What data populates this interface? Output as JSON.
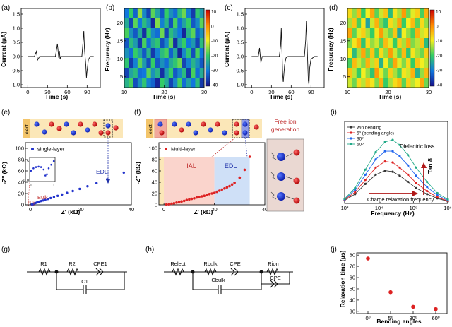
{
  "panels": {
    "a": {
      "label": "(a)",
      "ylabel": "Current (μA)",
      "xlabel": "Time (s)",
      "yticks": [
        "1.5",
        "1.0",
        "0.5",
        "0.0",
        "-0.5",
        "-1.0"
      ],
      "xticks": [
        "0",
        "30",
        "60",
        "90"
      ]
    },
    "b": {
      "label": "(b)",
      "ylabel": "Frequency (Hz)",
      "xlabel": "Time (s)",
      "yticks": [
        "20",
        "15",
        "10",
        "5"
      ],
      "xticks": [
        "10",
        "20",
        "30"
      ],
      "cbar": [
        "10",
        "0",
        "-10",
        "-20",
        "-30",
        "-40"
      ]
    },
    "c": {
      "label": "(c)",
      "ylabel": "Current (μA)",
      "xlabel": "Time (s)",
      "yticks": [
        "1.5",
        "1.0",
        "0.5",
        "0.0",
        "-0.5",
        "-1.0"
      ],
      "xticks": [
        "0",
        "30",
        "60",
        "90"
      ]
    },
    "d": {
      "label": "(d)",
      "ylabel": "Frequency (Hz)",
      "xlabel": "Time (s)",
      "yticks": [
        "20",
        "15",
        "10",
        "5"
      ],
      "xticks": [
        "10",
        "20",
        "30"
      ],
      "cbar": [
        "10",
        "0",
        "-10",
        "-20",
        "-30",
        "-40"
      ]
    },
    "e": {
      "label": "(e)",
      "elect": "elect",
      "legend": "single-layer",
      "edl": "EDL",
      "bulk": "Bulk",
      "ylabel": "-Z'' (kΩ)",
      "xlabel": "Z' (kΩ)",
      "yticks": [
        "100",
        "80",
        "60",
        "40",
        "20",
        "0"
      ],
      "xticks": [
        "0",
        "20",
        "40"
      ],
      "inset_y": [
        "0.5",
        "0.0"
      ],
      "inset_x": [
        "0",
        "1"
      ]
    },
    "f": {
      "label": "(f)",
      "elect": "elect",
      "legend": "Multi-layer",
      "ial": "IAL",
      "edl": "EDL",
      "free_ion_1": "Free ion",
      "free_ion_2": "generation",
      "ylabel": "-Z'' (kΩ)",
      "xlabel": "Z' (kΩ)",
      "yticks": [
        "100",
        "80",
        "60",
        "40",
        "20",
        "0"
      ],
      "xticks": [
        "0",
        "20",
        "40"
      ]
    },
    "g": {
      "label": "(g)",
      "r1": "R1",
      "r2": "R2",
      "cpe1": "CPE1",
      "c1": "C1"
    },
    "h": {
      "label": "(h)",
      "relect": "Relect",
      "rbulk": "Rbulk",
      "cpe": "CPE",
      "cbulk": "Cbulk",
      "rion": "Rion",
      "cpe2": "CPE"
    },
    "i": {
      "label": "(i)",
      "ylabel": "Tan δ",
      "xlabel": "Frequency (Hz)",
      "xticks": [
        "10³",
        "10⁴",
        "10⁵",
        "10⁶"
      ],
      "dielectric_loss": "Dielectric  loss",
      "charge_relax": "Charge relaxation  frequency"
    },
    "j": {
      "label": "(j)",
      "ylabel": "Relaxation time (μs)",
      "xlabel": "Bending angles",
      "yticks": [
        "80",
        "70",
        "60",
        "50",
        "40",
        "30"
      ],
      "xticks": [
        "0º",
        "5º",
        "30º",
        "60º"
      ]
    }
  },
  "chart_data": [
    {
      "type": "line",
      "panel": "a",
      "title": "",
      "xlabel": "Time (s)",
      "ylabel": "Current (μA)",
      "xlim": [
        -10,
        110
      ],
      "ylim": [
        -1.1,
        1.7
      ],
      "x": [
        0,
        5,
        10,
        13,
        15,
        18,
        20,
        35,
        42,
        45,
        47,
        48,
        49,
        50,
        52,
        55,
        58,
        60,
        75,
        82,
        84,
        85,
        86,
        87,
        88,
        89,
        90,
        92,
        95,
        100
      ],
      "y": [
        0,
        0,
        0,
        0.18,
        -0.12,
        0,
        0,
        0,
        0,
        0.45,
        -0.05,
        0.2,
        -0.1,
        0,
        0,
        0,
        0,
        0,
        0,
        0,
        0.55,
        0.9,
        0.3,
        0,
        -0.3,
        -0.75,
        -0.5,
        -0.1,
        0,
        0
      ]
    },
    {
      "type": "heatmap",
      "panel": "b",
      "xlabel": "Time (s)",
      "ylabel": "Frequency (Hz)",
      "xlim": [
        10,
        30
      ],
      "ylim": [
        2,
        24
      ],
      "clim": [
        -40,
        10
      ],
      "rows": [
        [
          -30,
          -20,
          -32,
          -15,
          -28,
          -35,
          -18,
          -25,
          -33,
          -20,
          -27,
          -31,
          -22,
          -17,
          -29,
          -36,
          -21,
          -26
        ],
        [
          -24,
          -35,
          -18,
          -30,
          -22,
          -27,
          -38,
          -16,
          -29,
          -23,
          -34,
          -19,
          -31,
          -25,
          -20,
          -33,
          -28,
          -18
        ],
        [
          -19,
          -27,
          -33,
          -24,
          -37,
          -20,
          -28,
          -31,
          -17,
          -35,
          -22,
          -26,
          -30,
          -38,
          -23,
          -18,
          -32,
          -27
        ],
        [
          -33,
          -22,
          -26,
          -36,
          -19,
          -31,
          -24,
          -21,
          -34,
          -28,
          -18,
          -37,
          -25,
          -20,
          -30,
          -26,
          -35,
          -22
        ],
        [
          -27,
          -31,
          -20,
          -25,
          -33,
          -23,
          -36,
          -29,
          -22,
          -19,
          -32,
          -24,
          -38,
          -28,
          -21,
          -34,
          -19,
          -30
        ],
        [
          -21,
          -36,
          -29,
          -18,
          -26,
          -34,
          -20,
          -33,
          -27,
          -31,
          -24,
          -21,
          -17,
          -35,
          -29,
          -23,
          -27,
          -33
        ],
        [
          -35,
          -25,
          -22,
          -31,
          -30,
          -18,
          -27,
          -23,
          -37,
          -26,
          -20,
          -33,
          -28,
          -22,
          -36,
          -19,
          -31,
          -24
        ],
        [
          -23,
          -19,
          -34,
          -27,
          -21,
          -29,
          -32,
          -38,
          -20,
          -24,
          -35,
          -28,
          -19,
          -31,
          -25,
          -30,
          -22,
          -36
        ]
      ]
    },
    {
      "type": "line",
      "panel": "c",
      "title": "",
      "xlabel": "Time (s)",
      "ylabel": "Current (μA)",
      "xlim": [
        -10,
        110
      ],
      "ylim": [
        -1.1,
        1.7
      ],
      "x": [
        0,
        5,
        10,
        12,
        14,
        16,
        20,
        35,
        42,
        44,
        45,
        46,
        47,
        48,
        50,
        52,
        55,
        60,
        75,
        80,
        82,
        83,
        84,
        85,
        86,
        87,
        88,
        90,
        95,
        100
      ],
      "y": [
        0,
        0,
        0,
        0.3,
        -0.22,
        0,
        0,
        0,
        0,
        0.4,
        1.0,
        0.2,
        -0.6,
        -0.9,
        -0.3,
        -0.05,
        0,
        0,
        0,
        0,
        0.6,
        1.25,
        0.5,
        -0.2,
        -0.85,
        -1.0,
        -0.4,
        -0.1,
        0,
        0
      ]
    },
    {
      "type": "heatmap",
      "panel": "d",
      "xlabel": "Time (s)",
      "ylabel": "Frequency (Hz)",
      "xlim": [
        10,
        30
      ],
      "ylim": [
        2,
        24
      ],
      "clim": [
        -40,
        10
      ],
      "rows": [
        [
          -8,
          -15,
          -5,
          -20,
          -10,
          -3,
          -18,
          -12,
          -6,
          -22,
          -9,
          -14,
          -2,
          -17,
          -11,
          -7,
          -19,
          -4
        ],
        [
          -14,
          -6,
          -19,
          -9,
          -25,
          -12,
          -4,
          -16,
          -21,
          -8,
          -13,
          -3,
          -20,
          -10,
          -5,
          -18,
          -8,
          -15
        ],
        [
          -3,
          -18,
          -11,
          -7,
          -14,
          -20,
          -9,
          -2,
          -13,
          -17,
          -6,
          -24,
          -10,
          -15,
          -19,
          -4,
          -12,
          -9
        ],
        [
          -16,
          -9,
          -4,
          -21,
          -8,
          -15,
          -12,
          -18,
          -5,
          -11,
          -20,
          -7,
          -14,
          -3,
          -16,
          -13,
          -6,
          -22
        ],
        [
          -10,
          -22,
          -14,
          -3,
          -17,
          -6,
          -19,
          -8,
          -15,
          -2,
          -12,
          -18,
          -5,
          -21,
          -9,
          -14,
          -17,
          -7
        ],
        [
          -19,
          -5,
          -12,
          -16,
          -4,
          -13,
          -7,
          -23,
          -10,
          -18,
          -3,
          -11,
          -16,
          -8,
          -20,
          -6,
          -10,
          -13
        ],
        [
          -6,
          -13,
          -20,
          -10,
          -15,
          -21,
          -2,
          -11,
          -17,
          -7,
          -14,
          -19,
          -9,
          -12,
          -4,
          -23,
          -15,
          -5
        ],
        [
          -12,
          -17,
          -8,
          -13,
          -6,
          -9,
          -16,
          -4,
          -20,
          -14,
          -8,
          -5,
          -18,
          -7,
          -13,
          -10,
          -3,
          -17
        ]
      ]
    },
    {
      "type": "scatter",
      "panel": "e",
      "series": [
        {
          "name": "single-layer",
          "color": "#2233cc",
          "x": [
            0.6,
            0.8,
            1.0,
            1.3,
            1.6,
            2.0,
            2.5,
            3.0,
            3.6,
            4.3,
            5.0,
            5.9,
            6.9,
            8.0,
            9.3,
            10.8,
            12.5,
            14.5,
            16.8,
            19.5,
            22.6,
            26.2,
            30.4,
            37.0
          ],
          "y": [
            0.5,
            1.0,
            1.5,
            2.0,
            2.6,
            3.2,
            4.0,
            4.8,
            5.7,
            6.7,
            7.8,
            9.0,
            10.4,
            12.0,
            13.8,
            15.9,
            18.3,
            21.1,
            24.4,
            28.3,
            32.9,
            38.4,
            45.0,
            57.0
          ]
        }
      ],
      "xlabel": "Z' (kΩ)",
      "ylabel": "-Z'' (kΩ)",
      "xlim": [
        -2,
        40
      ],
      "ylim": [
        0,
        110
      ]
    },
    {
      "type": "scatter",
      "panel": "f",
      "series": [
        {
          "name": "Multi-layer",
          "color": "#dd2222",
          "x": [
            1,
            2,
            3,
            4,
            5,
            6,
            7,
            8,
            9,
            10,
            11,
            12,
            13,
            14,
            15,
            16,
            17,
            18,
            19,
            20,
            21,
            22,
            23,
            24,
            25,
            26,
            27,
            28,
            30,
            32,
            34
          ],
          "y": [
            0.5,
            1,
            2,
            2.8,
            4,
            5,
            6,
            7,
            8.5,
            9.5,
            10.5,
            11.5,
            13,
            14,
            15,
            16,
            17.5,
            19,
            20,
            21,
            23,
            25,
            27,
            29,
            31,
            33,
            36,
            39,
            48,
            62,
            85
          ]
        }
      ],
      "xlabel": "Z' (kΩ)",
      "ylabel": "-Z'' (kΩ)",
      "xlim": [
        -2,
        40
      ],
      "ylim": [
        0,
        110
      ]
    },
    {
      "type": "line",
      "panel": "i",
      "xlabel": "Frequency (Hz)",
      "ylabel": "Tan δ",
      "xscale": "log",
      "xlim": [
        1000,
        1000000
      ],
      "ylim": [
        0,
        8
      ],
      "x": [
        1000,
        2000,
        4000,
        8000,
        15000,
        25000,
        40000,
        70000,
        120000,
        250000,
        500000,
        1000000
      ],
      "series": [
        {
          "name": "w/o bending",
          "color": "#333333",
          "values": [
            0.3,
            0.9,
            1.9,
            2.8,
            3.2,
            3.1,
            2.7,
            2.1,
            1.5,
            0.9,
            0.5,
            0.2
          ]
        },
        {
          "name": "5º (bending angle)",
          "color": "#dd2222",
          "values": [
            0.35,
            1.1,
            2.3,
            3.5,
            4.1,
            4.0,
            3.5,
            2.8,
            2.0,
            1.2,
            0.6,
            0.25
          ]
        },
        {
          "name": "30º",
          "color": "#2266ee",
          "values": [
            0.4,
            1.3,
            2.8,
            4.3,
            5.1,
            5.1,
            4.6,
            3.7,
            2.7,
            1.6,
            0.8,
            0.3
          ]
        },
        {
          "name": "60º",
          "color": "#22aa88",
          "values": [
            0.45,
            1.5,
            3.3,
            5.0,
            6.0,
            6.2,
            5.7,
            4.7,
            3.5,
            2.1,
            1.0,
            0.4
          ]
        }
      ]
    },
    {
      "type": "scatter",
      "panel": "j",
      "categories": [
        "0º",
        "5º",
        "30º",
        "60º"
      ],
      "values": [
        77,
        47,
        34,
        32
      ],
      "xlabel": "Bending angles",
      "ylabel": "Relaxation time (μs)",
      "ylim": [
        28,
        82
      ]
    }
  ]
}
